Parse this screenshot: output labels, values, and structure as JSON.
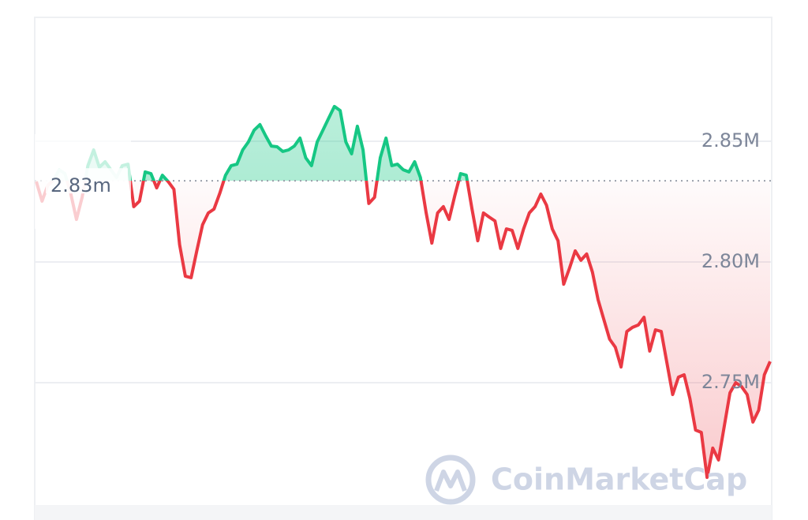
{
  "chart_data": {
    "type": "line",
    "values": [
      2833300,
      2825200,
      2831700,
      2834000,
      2838200,
      2836600,
      2828400,
      2817600,
      2826800,
      2839900,
      2846400,
      2839200,
      2841500,
      2838200,
      2835000,
      2839900,
      2840500,
      2822900,
      2825200,
      2837300,
      2836600,
      2830700,
      2835900,
      2833300,
      2830100,
      2807200,
      2794100,
      2793500,
      2804600,
      2815400,
      2820300,
      2821900,
      2828400,
      2835900,
      2839900,
      2840500,
      2846400,
      2849700,
      2854600,
      2856900,
      2852300,
      2848000,
      2847700,
      2845800,
      2846400,
      2848000,
      2851300,
      2843100,
      2839900,
      2849700,
      2854600,
      2859500,
      2864400,
      2862700,
      2849700,
      2844800,
      2856200,
      2846400,
      2824200,
      2826800,
      2843100,
      2851300,
      2839900,
      2840500,
      2838200,
      2837300,
      2841500,
      2835000,
      2820300,
      2807800,
      2820300,
      2822900,
      2817600,
      2827500,
      2836600,
      2835900,
      2821900,
      2808800,
      2820300,
      2818600,
      2817000,
      2805600,
      2813700,
      2813100,
      2805600,
      2813700,
      2820300,
      2822900,
      2828100,
      2823500,
      2813700,
      2808800,
      2790800,
      2797400,
      2804600,
      2800700,
      2803300,
      2795800,
      2784300,
      2776100,
      2768000,
      2764700,
      2756500,
      2771200,
      2772900,
      2773900,
      2777100,
      2763100,
      2771900,
      2771200,
      2758200,
      2745100,
      2752300,
      2753300,
      2743500,
      2730400,
      2729400,
      2710800,
      2722900,
      2718000,
      2732000,
      2745800,
      2750000,
      2748400,
      2745100,
      2733700,
      2738600,
      2753300,
      2758800
    ],
    "baseline": {
      "value": 2833600,
      "label": "2.83m"
    },
    "colors": {
      "above": "#16c784",
      "below": "#ea3943"
    },
    "ylim": [
      2700000,
      2900000
    ],
    "yticks": [
      {
        "value": 2750000,
        "label": "2.75M"
      },
      {
        "value": 2800000,
        "label": "2.80M"
      },
      {
        "value": 2850000,
        "label": "2.85M"
      }
    ],
    "grid": true,
    "watermark": "CoinMarketCap"
  }
}
